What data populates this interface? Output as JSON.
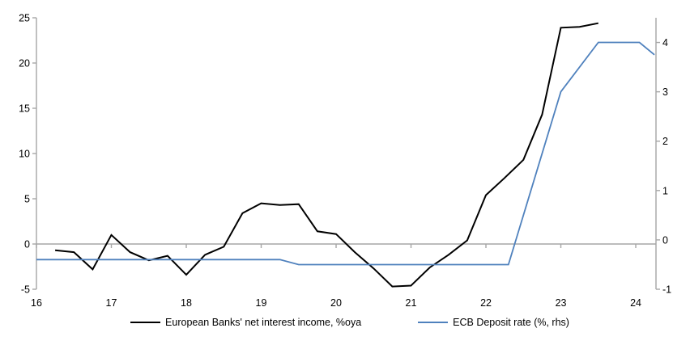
{
  "chart_data": {
    "type": "line",
    "title": "",
    "x_axis": {
      "min": 16,
      "max": 24.27,
      "ticks": [
        16,
        17,
        18,
        19,
        20,
        21,
        22,
        23,
        24
      ]
    },
    "left_axis": {
      "min": -5,
      "max": 25,
      "ticks": [
        -5,
        0,
        5,
        10,
        15,
        20,
        25
      ]
    },
    "right_axis": {
      "min": -1,
      "max": 4.5,
      "ticks": [
        -1,
        0,
        1,
        2,
        3,
        4
      ]
    },
    "zero_line": true,
    "grid": false,
    "legend_position": "bottom",
    "series": [
      {
        "key": "net-interest-income",
        "name": "European Banks' net interest income, %oya",
        "axis": "left",
        "color": "#000000",
        "points": [
          [
            16.25,
            -0.7
          ],
          [
            16.5,
            -0.9
          ],
          [
            16.75,
            -2.8
          ],
          [
            17.0,
            1.0
          ],
          [
            17.25,
            -0.9
          ],
          [
            17.5,
            -1.8
          ],
          [
            17.75,
            -1.3
          ],
          [
            18.0,
            -3.4
          ],
          [
            18.25,
            -1.2
          ],
          [
            18.5,
            -0.3
          ],
          [
            18.75,
            3.4
          ],
          [
            19.0,
            4.5
          ],
          [
            19.25,
            4.3
          ],
          [
            19.5,
            4.4
          ],
          [
            19.75,
            1.4
          ],
          [
            20.0,
            1.1
          ],
          [
            20.25,
            -0.9
          ],
          [
            20.5,
            -2.7
          ],
          [
            20.75,
            -4.7
          ],
          [
            21.0,
            -4.6
          ],
          [
            21.25,
            -2.6
          ],
          [
            21.5,
            -1.2
          ],
          [
            21.75,
            0.4
          ],
          [
            22.0,
            5.4
          ],
          [
            22.25,
            7.3
          ],
          [
            22.5,
            9.3
          ],
          [
            22.75,
            14.3
          ],
          [
            23.0,
            23.9
          ],
          [
            23.25,
            24.0
          ],
          [
            23.5,
            24.4
          ]
        ]
      },
      {
        "key": "ecb-deposit-rate",
        "name": "ECB Deposit rate (%, rhs)",
        "axis": "right",
        "color": "#4F81BD",
        "points": [
          [
            16.0,
            -0.4
          ],
          [
            19.25,
            -0.4
          ],
          [
            19.5,
            -0.5
          ],
          [
            22.3,
            -0.5
          ],
          [
            23.0,
            3.0
          ],
          [
            23.5,
            4.0
          ],
          [
            24.05,
            4.0
          ],
          [
            24.25,
            3.75
          ]
        ]
      }
    ]
  },
  "colors": {
    "axis": "#A6A6A6",
    "text": "#000000",
    "background": "#FFFFFF",
    "series_black": "#000000",
    "series_blue": "#4F81BD"
  }
}
